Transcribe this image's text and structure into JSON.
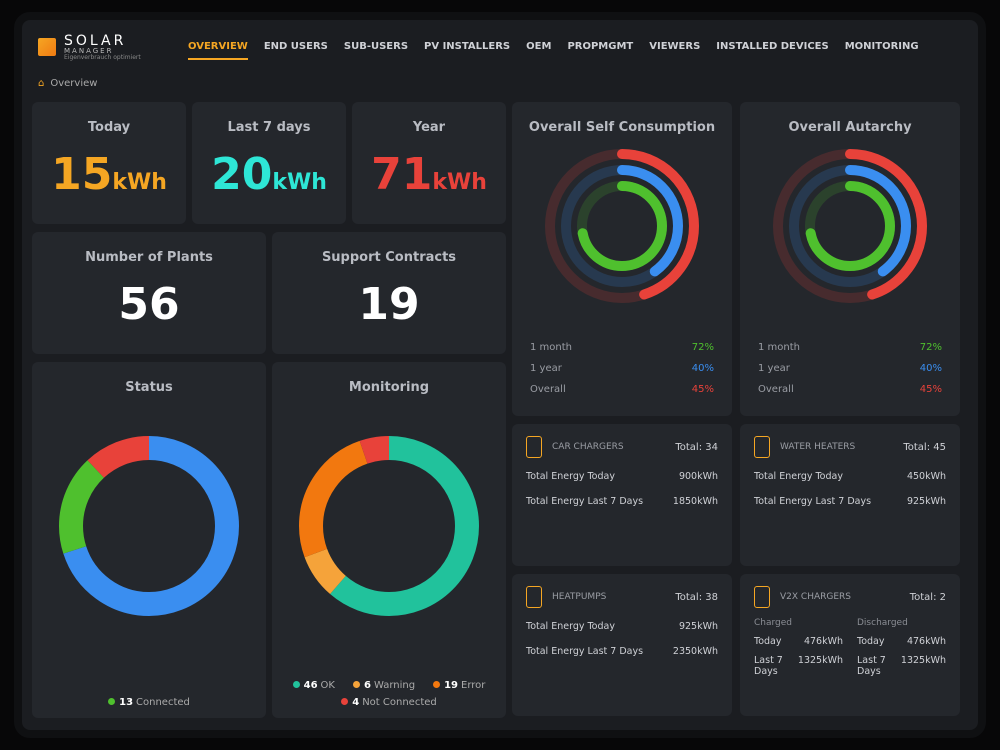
{
  "brand": {
    "name": "SOLAR",
    "sub": "MANAGER",
    "tagline": "Eigenverbrauch optimiert"
  },
  "nav": [
    "OVERVIEW",
    "END USERS",
    "SUB-USERS",
    "PV INSTALLERS",
    "OEM",
    "PROPMGMT",
    "VIEWERS",
    "INSTALLED DEVICES",
    "MONITORING"
  ],
  "breadcrumb": "Overview",
  "energy": [
    {
      "label": "Today",
      "value": "15",
      "unit": "kWh",
      "color": "#f5a623"
    },
    {
      "label": "Last 7 days",
      "value": "20",
      "unit": "kWh",
      "color": "#2ee6d6"
    },
    {
      "label": "Year",
      "value": "71",
      "unit": "kWh",
      "color": "#e8423a"
    }
  ],
  "stats": [
    {
      "label": "Number of Plants",
      "value": "56"
    },
    {
      "label": "Support Contracts",
      "value": "19"
    }
  ],
  "status": {
    "title": "Status",
    "segments": [
      {
        "value": 70,
        "color": "#3a8ef0"
      },
      {
        "value": 18,
        "color": "#4fc02e"
      },
      {
        "value": 12,
        "color": "#e8423a"
      }
    ],
    "legend": [
      {
        "count": 13,
        "label": "Connected",
        "color": "#4fc02e"
      }
    ]
  },
  "monitoring": {
    "title": "Monitoring",
    "segments": [
      {
        "count": 46,
        "label": "OK",
        "color": "#21c29c"
      },
      {
        "count": 6,
        "label": "Warning",
        "color": "#f5a33a"
      },
      {
        "count": 19,
        "label": "Error",
        "color": "#f2780f"
      },
      {
        "count": 4,
        "label": "Not Connected",
        "color": "#e8423a"
      }
    ]
  },
  "self_consumption": {
    "title": "Overall Self Consumption",
    "rings": [
      {
        "label": "1 month",
        "value": 72,
        "value_label": "72%",
        "color": "#4fc02e"
      },
      {
        "label": "1 year",
        "value": 40,
        "value_label": "40%",
        "color": "#3a8ef0"
      },
      {
        "label": "Overall",
        "value": 45,
        "value_label": "45%",
        "color": "#e8423a"
      }
    ]
  },
  "autarchy": {
    "title": "Overall Autarchy",
    "rings": [
      {
        "label": "1 month",
        "value": 72,
        "value_label": "72%",
        "color": "#4fc02e"
      },
      {
        "label": "1 year",
        "value": 40,
        "value_label": "40%",
        "color": "#3a8ef0"
      },
      {
        "label": "Overall",
        "value": 45,
        "value_label": "45%",
        "color": "#e8423a"
      }
    ]
  },
  "devices": [
    {
      "title": "CAR CHARGERS",
      "total": "Total: 34",
      "rows": [
        {
          "label": "Total Energy Today",
          "value": "900kWh"
        },
        {
          "label": "Total Energy Last 7 Days",
          "value": "1850kWh"
        }
      ]
    },
    {
      "title": "HEATPUMPS",
      "total": "Total: 38",
      "rows": [
        {
          "label": "Total Energy Today",
          "value": "925kWh"
        },
        {
          "label": "Total Energy Last 7 Days",
          "value": "2350kWh"
        }
      ]
    },
    {
      "title": "WATER HEATERS",
      "total": "Total: 45",
      "rows": [
        {
          "label": "Total Energy Today",
          "value": "450kWh"
        },
        {
          "label": "Total Energy Last 7 Days",
          "value": "925kWh"
        }
      ]
    }
  ],
  "v2x": {
    "title": "V2X CHARGERS",
    "total": "Total: 2",
    "groups": [
      {
        "label": "Charged",
        "rows": [
          {
            "label": "Today",
            "value": "476kWh"
          },
          {
            "label": "Last 7 Days",
            "value": "1325kWh"
          }
        ]
      },
      {
        "label": "Discharged",
        "rows": [
          {
            "label": "Today",
            "value": "476kWh"
          },
          {
            "label": "Last 7 Days",
            "value": "1325kWh"
          }
        ]
      }
    ]
  }
}
